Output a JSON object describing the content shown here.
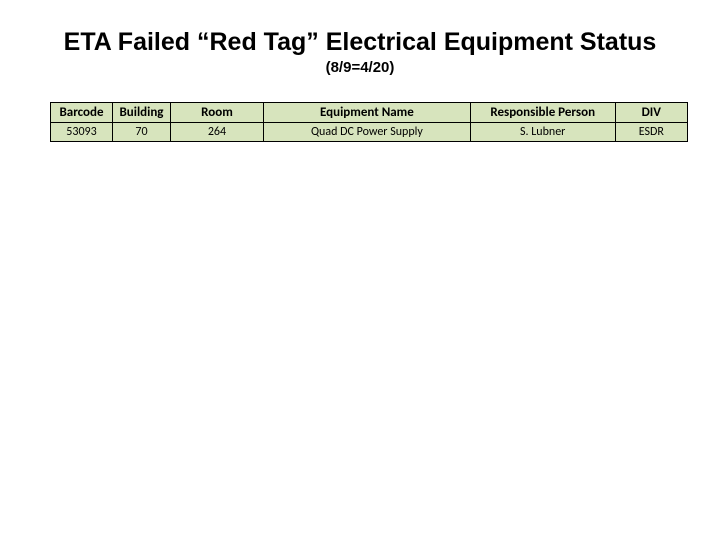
{
  "title": "ETA Failed “Red Tag” Electrical Equipment Status",
  "subtitle": "(8/9=4/20)",
  "table": {
    "columns": [
      {
        "key": "barcode",
        "label": "Barcode",
        "class": "col-barcode"
      },
      {
        "key": "building",
        "label": "Building",
        "class": "col-building"
      },
      {
        "key": "room",
        "label": "Room",
        "class": "col-room"
      },
      {
        "key": "equipment",
        "label": "Equipment Name",
        "class": "col-equipment"
      },
      {
        "key": "person",
        "label": "Responsible Person",
        "class": "col-person"
      },
      {
        "key": "div",
        "label": "DIV",
        "class": "col-div"
      }
    ],
    "rows": [
      {
        "barcode": "53093",
        "building": "70",
        "room": "264",
        "equipment": "Quad DC Power Supply",
        "person": "S. Lubner",
        "div": "ESDR"
      }
    ],
    "header_bg": "#d7e4bd",
    "row_bg": "#d7e4bd",
    "border_color": "#000000"
  }
}
